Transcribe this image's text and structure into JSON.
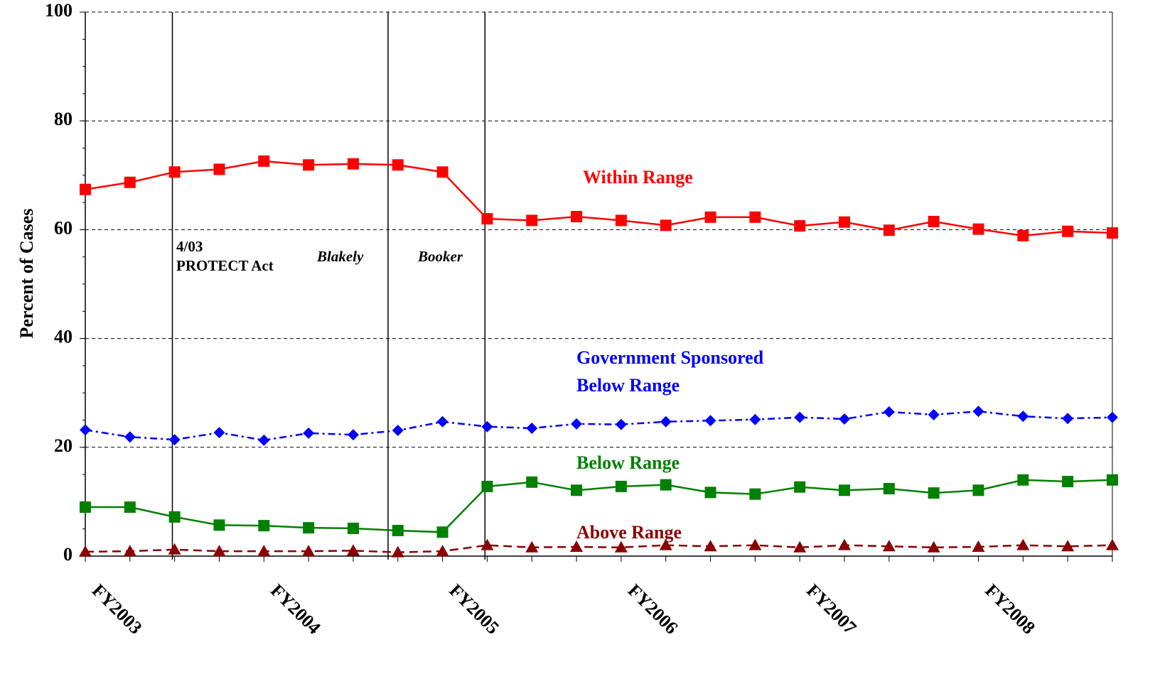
{
  "chart_data": {
    "type": "line",
    "ylabel": "Percent of Cases",
    "categories": [
      "FY2003",
      null,
      null,
      null,
      "FY2004",
      null,
      null,
      null,
      "FY2005",
      null,
      null,
      null,
      "FY2006",
      null,
      null,
      null,
      "FY2007",
      null,
      null,
      null,
      "FY2008",
      null,
      null,
      null
    ],
    "ylim": [
      0,
      100
    ],
    "yticks": [
      0,
      20,
      40,
      60,
      80,
      100
    ],
    "grid": true,
    "series": [
      {
        "name": "Within Range",
        "color": "#ff0000",
        "marker": "square",
        "dash": "solid",
        "values": [
          67.4,
          68.7,
          70.6,
          71.1,
          72.6,
          71.9,
          72.1,
          71.9,
          70.6,
          62.0,
          61.7,
          62.4,
          61.7,
          60.8,
          62.3,
          62.3,
          60.7,
          61.4,
          59.9,
          61.5,
          60.1,
          58.9,
          59.7,
          59.4
        ]
      },
      {
        "name": "Government Sponsored Below Range",
        "color": "#0000ff",
        "marker": "diamond",
        "dash": "dashdot",
        "values": [
          23.2,
          21.9,
          21.4,
          22.7,
          21.3,
          22.6,
          22.3,
          23.1,
          24.7,
          23.8,
          23.5,
          24.3,
          24.2,
          24.7,
          24.9,
          25.1,
          25.5,
          25.2,
          26.5,
          26.0,
          26.6,
          25.7,
          25.3,
          25.5
        ]
      },
      {
        "name": "Below Range",
        "color": "#008000",
        "marker": "square",
        "dash": "solid",
        "values": [
          9.0,
          9.0,
          7.2,
          5.7,
          5.6,
          5.2,
          5.1,
          4.7,
          4.4,
          12.8,
          13.6,
          12.1,
          12.8,
          13.1,
          11.7,
          11.4,
          12.7,
          12.1,
          12.4,
          11.6,
          12.1,
          14.0,
          13.7,
          14.0
        ]
      },
      {
        "name": "Above Range",
        "color": "#8b0000",
        "marker": "triangle",
        "dash": "dashed",
        "values": [
          0.8,
          0.9,
          1.2,
          0.9,
          0.9,
          0.9,
          1.0,
          0.7,
          0.9,
          2.0,
          1.6,
          1.7,
          1.6,
          2.0,
          1.8,
          2.0,
          1.6,
          2.0,
          1.8,
          1.6,
          1.7,
          2.0,
          1.8,
          2.0
        ]
      }
    ],
    "events": [
      {
        "at": 1.95,
        "label": [
          "4/03",
          "PROTECT Act"
        ],
        "italic": false
      },
      {
        "at": 6.78,
        "label": [
          "Blakely"
        ],
        "italic": true
      },
      {
        "at": 8.95,
        "label": [
          "Booker"
        ],
        "italic": true
      }
    ]
  }
}
